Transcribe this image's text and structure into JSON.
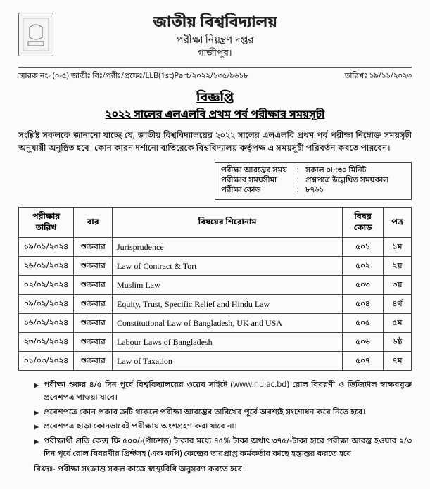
{
  "header": {
    "university": "জাতীয় বিশ্ববিদ্যালয়",
    "department": "পরীক্ষা নিয়ন্ত্রণ দপ্তর",
    "city": "গাজীপুর।"
  },
  "ref": {
    "label": "স্মারক নং- (০-৫) জাতীঃ বিঃ/পরীঃ/প্রফেঃ/LLB(1st)Part/২০২২/১৩৫/৯৬১৮",
    "date_label": "তারিখঃ ১৯/১১/২০২৩"
  },
  "notice_title": "বিজ্ঞপ্তি",
  "sub_title": "২০২২ সালের এলএলবি প্রথম পর্ব পরীক্ষার সময়সূচী",
  "paragraph": "সংশ্লিষ্ট সকলকে জানানো যাচ্ছে যে, জাতীয় বিশ্ববিদ্যালয়ের ২০২২ সালের এলএলবি প্রথম পর্ব পরীক্ষা নিম্নোক্ত সময়সূচী অনুযায়ী অনুষ্ঠিত হবে। কোন কারন দর্শানো ব্যতিরেকে বিশ্ববিদ্যালয় কর্তৃপক্ষ এ সময়সূচী পরিবর্তন করতে পারবেন।",
  "info": [
    {
      "label": "পরীক্ষা আরম্ভের সময়",
      "value": "সকাল ০৮:৩০ মিনিট"
    },
    {
      "label": "পরীক্ষার সময়সীমা",
      "value": "প্রশ্নপত্রে উল্লেখিত সময়কাল"
    },
    {
      "label": "পরীক্ষা কোড",
      "value": "৮৭৬১"
    }
  ],
  "table": {
    "headers": [
      "পরীক্ষার তারিখ",
      "বার",
      "বিষয়ের শিরোনাম",
      "বিষয় কোড",
      "পত্র"
    ],
    "rows": [
      {
        "date": "১৯/০১/২০২৪",
        "day": "শুক্রবার",
        "subject": "Jurisprudence",
        "code": "৫০১",
        "paper": "১ম"
      },
      {
        "date": "২৬/০১/২০২৪",
        "day": "শুক্রবার",
        "subject": "Law of Contract & Tort",
        "code": "৫০২",
        "paper": "২য়"
      },
      {
        "date": "০২/০২/২০২৪",
        "day": "শুক্রবার",
        "subject": "Muslim Law",
        "code": "৫০৩",
        "paper": "৩য়"
      },
      {
        "date": "০৯/০২/২০২৪",
        "day": "শুক্রবার",
        "subject": "Equity, Trust, Specific Relief and Hindu Law",
        "code": "৫০৪",
        "paper": "৪র্থ"
      },
      {
        "date": "১৬/০২/২০২৪",
        "day": "শুক্রবার",
        "subject": "Constitutional Law of Bangladesh, UK and USA",
        "code": "৫০৫",
        "paper": "৫ম"
      },
      {
        "date": "২৩/০২/২০২৪",
        "day": "শুক্রবার",
        "subject": "Labour Laws of Bangladesh",
        "code": "৫০৬",
        "paper": "৬ষ্ঠ"
      },
      {
        "date": "০১/০৩/২০২৪",
        "day": "শুক্রবার",
        "subject": "Law of Taxation",
        "code": "৫০৭",
        "paper": "৭ম"
      }
    ]
  },
  "bullets": [
    "পরীক্ষা শুরুর ৪/৫ দিন পূর্বে বিশ্ববিদ্যালয়ের ওয়েব সাইটে (www.nu.ac.bd) রোল বিবরণী ও ডিজিটাল স্বাক্ষরযুক্ত প্রবেশপত্র পাওয়া যাবে।",
    "প্রবেশপত্রে কোন প্রকার ত্রুটি থাকলে পরীক্ষা আরম্ভের তারিখের পূর্বে অবশ্যই সংশোধন করে নিতে হবে।",
    "প্রবেশপত্র ছাড়া কোনভাবেই পরীক্ষায় অংশগ্রহণ করা যাবে না।",
    "পরীক্ষার্থী প্রতি কেন্দ্র ফি ৫০০/-(পাঁচশত) টাকার মধ্যে ৭৫% টাকা অর্থাৎ ৩৭৫/-টাকা হারে পরীক্ষা আরম্ভ হওয়ার ২/৩ দিন পূর্বে রোল বিবরণীর প্রিন্টসহ (এক কপি) কেন্দ্রের ভারপ্রাপ্ত কর্মকর্তার কাছে হস্তান্তর করতে হবে।"
  ],
  "footnote": "বিঃদ্রঃ- পরীক্ষা সংক্রান্ত সকল কাজে স্বাস্থ্যবিধি অনুসরণ করতে হবে।",
  "url_text": "www.nu.ac.bd"
}
